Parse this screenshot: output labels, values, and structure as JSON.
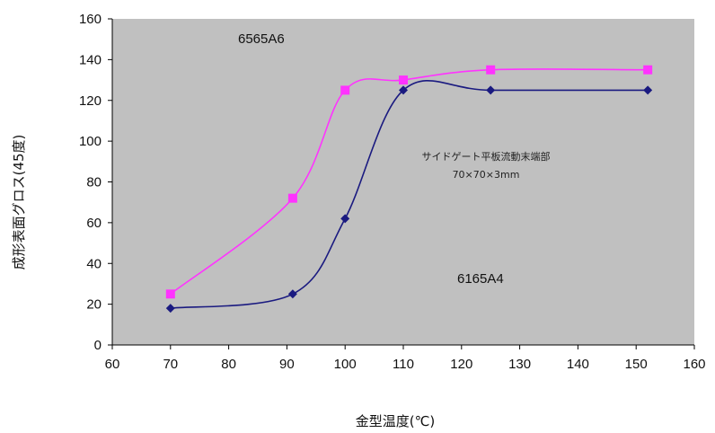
{
  "chart_data": {
    "type": "line",
    "title": "",
    "xlabel": "金型温度(℃)",
    "ylabel": "成形表面グロス(45度)",
    "xlim": [
      60,
      160
    ],
    "ylim": [
      0,
      160
    ],
    "x_ticks": [
      60,
      70,
      80,
      90,
      100,
      110,
      120,
      130,
      140,
      150,
      160
    ],
    "y_ticks": [
      0,
      20,
      40,
      60,
      80,
      100,
      120,
      140,
      160
    ],
    "grid": false,
    "plot_background": "#c0c0c0",
    "series": [
      {
        "name": "6565A6",
        "color": "#ff33ff",
        "marker": "square",
        "x": [
          70,
          91,
          100,
          110,
          125,
          152
        ],
        "y": [
          25,
          72,
          125,
          130,
          135,
          135
        ]
      },
      {
        "name": "6165A4",
        "color": "#1a1a80",
        "marker": "diamond",
        "x": [
          70,
          91,
          100,
          110,
          125,
          152
        ],
        "y": [
          18,
          25,
          62,
          125,
          125,
          125
        ]
      }
    ],
    "annotations": [
      "サイドゲート平板流動末端部",
      "70×70×3mm"
    ]
  }
}
